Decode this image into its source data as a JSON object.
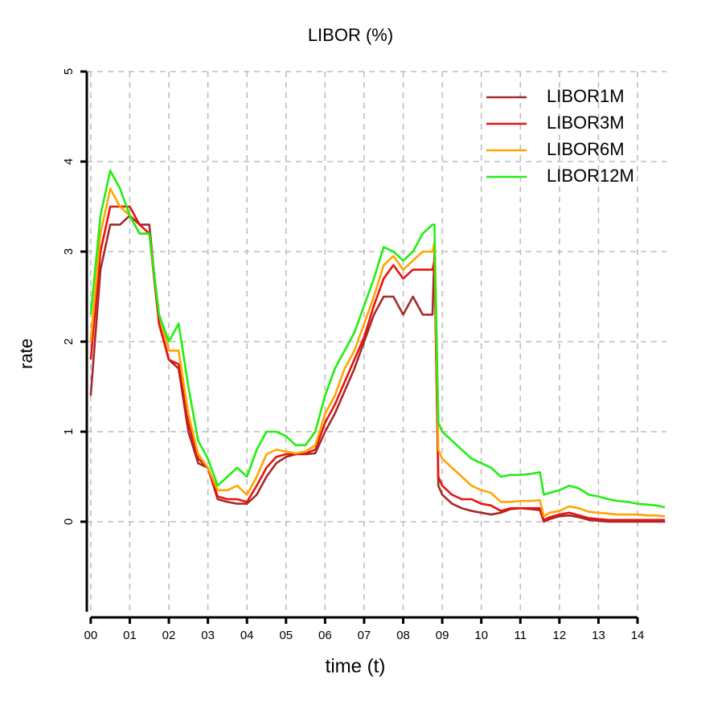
{
  "chart_data": {
    "type": "line",
    "title": "LIBOR (%)",
    "x_label": "time (t)",
    "y_label": "rate",
    "x": [
      0,
      0.25,
      0.5,
      0.75,
      1,
      1.25,
      1.5,
      1.75,
      2,
      2.25,
      2.5,
      2.75,
      3,
      3.25,
      3.5,
      3.75,
      4,
      4.25,
      4.5,
      4.75,
      5,
      5.25,
      5.5,
      5.75,
      6,
      6.25,
      6.5,
      6.75,
      7,
      7.25,
      7.5,
      7.75,
      8,
      8.25,
      8.5,
      8.75,
      8.8,
      8.9,
      9,
      9.25,
      9.5,
      9.75,
      10,
      10.25,
      10.5,
      10.75,
      11,
      11.25,
      11.5,
      11.6,
      11.75,
      12,
      12.25,
      12.5,
      12.75,
      13,
      13.25,
      13.5,
      13.75,
      14,
      14.25,
      14.5,
      14.7
    ],
    "series": [
      {
        "name": "LIBOR1M",
        "color": "#a52a2a",
        "values": [
          1.4,
          2.8,
          3.3,
          3.3,
          3.4,
          3.3,
          3.3,
          2.2,
          1.8,
          1.7,
          1.0,
          0.65,
          0.6,
          0.25,
          0.22,
          0.2,
          0.2,
          0.3,
          0.5,
          0.65,
          0.72,
          0.75,
          0.75,
          0.76,
          1.0,
          1.2,
          1.45,
          1.7,
          2.0,
          2.3,
          2.5,
          2.5,
          2.3,
          2.5,
          2.3,
          2.3,
          3.0,
          0.4,
          0.3,
          0.2,
          0.15,
          0.12,
          0.1,
          0.08,
          0.1,
          0.14,
          0.15,
          0.14,
          0.13,
          0.0,
          0.03,
          0.06,
          0.07,
          0.05,
          0.02,
          0.01,
          0.0,
          0.0,
          0.0,
          0.0,
          0.0,
          0.0,
          0.0
        ]
      },
      {
        "name": "LIBOR3M",
        "color": "#e8130f",
        "values": [
          1.8,
          3.0,
          3.5,
          3.5,
          3.5,
          3.3,
          3.2,
          2.2,
          1.8,
          1.75,
          1.1,
          0.7,
          0.6,
          0.28,
          0.25,
          0.25,
          0.22,
          0.4,
          0.6,
          0.72,
          0.75,
          0.75,
          0.76,
          0.8,
          1.1,
          1.3,
          1.55,
          1.8,
          2.05,
          2.4,
          2.7,
          2.85,
          2.7,
          2.8,
          2.8,
          2.8,
          2.9,
          0.5,
          0.4,
          0.3,
          0.25,
          0.25,
          0.2,
          0.18,
          0.12,
          0.15,
          0.15,
          0.15,
          0.15,
          0.02,
          0.05,
          0.08,
          0.1,
          0.07,
          0.04,
          0.03,
          0.02,
          0.02,
          0.02,
          0.02,
          0.02,
          0.02,
          0.02
        ]
      },
      {
        "name": "LIBOR6M",
        "color": "#ffa500",
        "values": [
          2.0,
          3.2,
          3.7,
          3.5,
          3.4,
          3.2,
          3.2,
          2.3,
          1.9,
          1.9,
          1.2,
          0.75,
          0.6,
          0.35,
          0.35,
          0.4,
          0.3,
          0.5,
          0.75,
          0.8,
          0.78,
          0.76,
          0.78,
          0.85,
          1.2,
          1.4,
          1.7,
          1.9,
          2.2,
          2.5,
          2.85,
          2.95,
          2.8,
          2.9,
          3.0,
          3.0,
          3.1,
          0.8,
          0.7,
          0.6,
          0.5,
          0.4,
          0.35,
          0.32,
          0.22,
          0.22,
          0.23,
          0.23,
          0.24,
          0.06,
          0.1,
          0.12,
          0.17,
          0.15,
          0.11,
          0.1,
          0.09,
          0.08,
          0.08,
          0.08,
          0.07,
          0.07,
          0.06
        ]
      },
      {
        "name": "LIBOR12M",
        "color": "#22ee11",
        "values": [
          2.3,
          3.4,
          3.9,
          3.7,
          3.4,
          3.2,
          3.2,
          2.3,
          2.0,
          2.2,
          1.5,
          0.9,
          0.7,
          0.4,
          0.5,
          0.6,
          0.5,
          0.8,
          1.0,
          1.0,
          0.95,
          0.85,
          0.85,
          1.0,
          1.4,
          1.7,
          1.9,
          2.1,
          2.4,
          2.7,
          3.05,
          3.0,
          2.9,
          3.0,
          3.2,
          3.3,
          3.3,
          1.1,
          1.0,
          0.9,
          0.8,
          0.7,
          0.65,
          0.6,
          0.5,
          0.52,
          0.52,
          0.53,
          0.55,
          0.3,
          0.32,
          0.35,
          0.4,
          0.37,
          0.3,
          0.28,
          0.25,
          0.23,
          0.22,
          0.2,
          0.19,
          0.18,
          0.16
        ]
      }
    ],
    "xlim": [
      -0.1,
      14.74
    ],
    "ylim": [
      -1,
      5
    ],
    "xticks": [
      {
        "value": 0,
        "label": "00"
      },
      {
        "value": 1,
        "label": "01"
      },
      {
        "value": 2,
        "label": "02"
      },
      {
        "value": 3,
        "label": "03"
      },
      {
        "value": 4,
        "label": "04"
      },
      {
        "value": 5,
        "label": "05"
      },
      {
        "value": 6,
        "label": "06"
      },
      {
        "value": 7,
        "label": "07"
      },
      {
        "value": 8,
        "label": "08"
      },
      {
        "value": 9,
        "label": "09"
      },
      {
        "value": 10,
        "label": "10"
      },
      {
        "value": 11,
        "label": "11"
      },
      {
        "value": 12,
        "label": "12"
      },
      {
        "value": 13,
        "label": "13"
      },
      {
        "value": 14,
        "label": "14"
      }
    ],
    "yticks": [
      0,
      1,
      2,
      3,
      4,
      5
    ],
    "grid": true,
    "legend": "top-right"
  }
}
